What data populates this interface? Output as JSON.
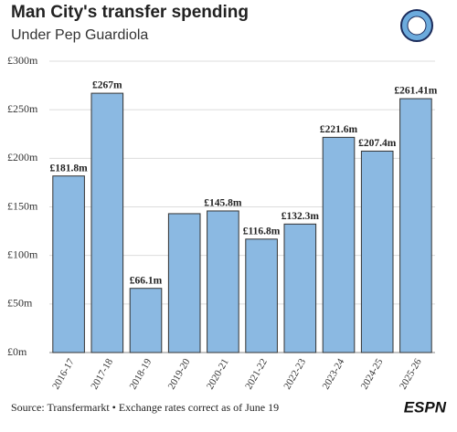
{
  "chart_data": {
    "type": "bar",
    "title": "Man City's transfer spending",
    "subtitle": "Under Pep Guardiola",
    "source": "Source: Transfermarkt • Exchange rates correct as of June 19",
    "brand": "ESPN",
    "categories": [
      "2016-17",
      "2017-18",
      "2018-19",
      "2019-20",
      "2020-21",
      "2021-22",
      "2022-23",
      "2023-24",
      "2024-25",
      "2025-26"
    ],
    "values": [
      181.8,
      267,
      66.1,
      143,
      145.8,
      116.8,
      132.3,
      221.6,
      207.4,
      261.41
    ],
    "value_labels": [
      "£181.8m",
      "£267m",
      "£66.1m",
      null,
      "£145.8m",
      "£116.8m",
      "£132.3m",
      "£221.6m",
      "£207.4m",
      "£261.41m"
    ],
    "color": "#8bb9e2",
    "ylim": [
      0,
      300
    ],
    "yticks": [
      {
        "value": 0,
        "label": "£0m"
      },
      {
        "value": 50,
        "label": "£50m"
      },
      {
        "value": 100,
        "label": "£100m"
      },
      {
        "value": 150,
        "label": "£150m"
      },
      {
        "value": 200,
        "label": "£200m"
      },
      {
        "value": 250,
        "label": "£250m"
      },
      {
        "value": 300,
        "label": "£300m"
      }
    ],
    "grid": true
  }
}
